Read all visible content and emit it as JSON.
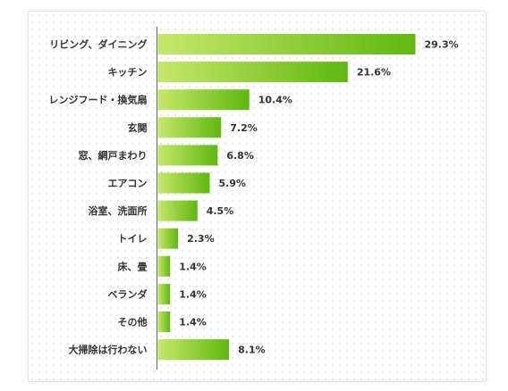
{
  "chart_data": {
    "type": "bar",
    "orientation": "horizontal",
    "categories": [
      "リビング、ダイニング",
      "キッチン",
      "レンジフード・換気扇",
      "玄関",
      "窓、網戸まわり",
      "エアコン",
      "浴室、洗面所",
      "トイレ",
      "床、畳",
      "ベランダ",
      "その他",
      "大掃除は行わない"
    ],
    "values": [
      29.3,
      21.6,
      10.4,
      7.2,
      6.8,
      5.9,
      4.5,
      2.3,
      1.4,
      1.4,
      1.4,
      8.1
    ],
    "value_labels": [
      "29.3%",
      "21.6%",
      "10.4%",
      "7.2%",
      "6.8%",
      "5.9%",
      "4.5%",
      "2.3%",
      "1.4%",
      "1.4%",
      "1.4%",
      "8.1%"
    ],
    "xlim": [
      0,
      29.3
    ],
    "grid": false,
    "colors": {
      "bar_start": "#c6e86a",
      "bar_end": "#5fb80f",
      "axis": "#666666",
      "text": "#333333"
    }
  }
}
